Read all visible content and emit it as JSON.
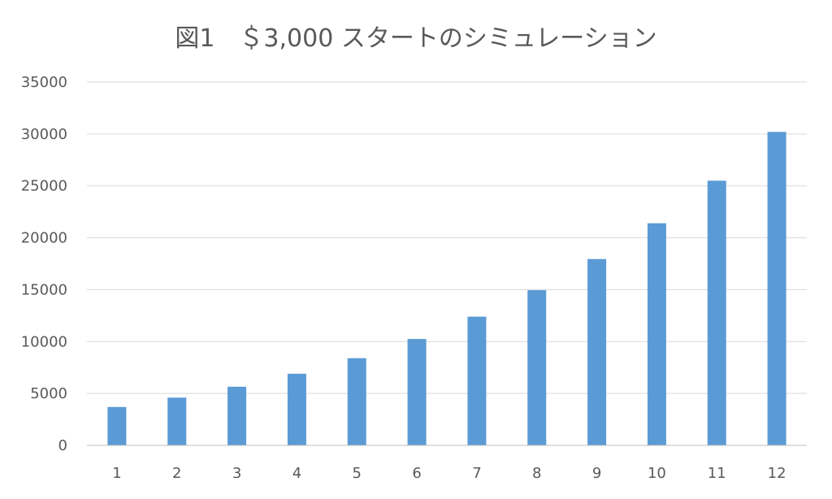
{
  "chart_data": {
    "type": "bar",
    "title": "図1　＄3,000 スタートのシミュレーション",
    "xlabel": "",
    "ylabel": "",
    "categories": [
      "1",
      "2",
      "3",
      "4",
      "5",
      "6",
      "7",
      "8",
      "9",
      "10",
      "11",
      "12"
    ],
    "series": [
      {
        "values": [
          3700,
          4600,
          5650,
          6900,
          8400,
          10250,
          12400,
          14950,
          17950,
          21400,
          25500,
          30200
        ]
      }
    ],
    "ylim": [
      0,
      35000
    ],
    "yticks": [
      "0",
      "5000",
      "10000",
      "15000",
      "20000",
      "25000",
      "30000",
      "35000"
    ],
    "grid": true,
    "legend": "none",
    "bar_color": "#5b9bd5"
  }
}
